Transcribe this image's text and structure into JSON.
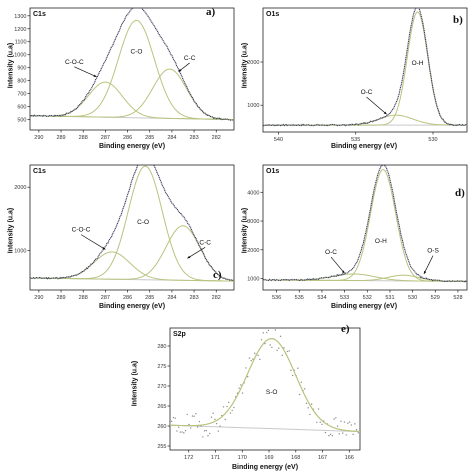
{
  "colors": {
    "envelope": "#3a3d5c",
    "component": "#b9c47f",
    "background_line": "#c9c9c9",
    "raw_points": "#8c8c8c",
    "axis": "#222222"
  },
  "chart_data": [
    {
      "id": "a",
      "type": "line",
      "panel_letter": "a)",
      "title": "C1s",
      "xlabel": "Binding energy (eV)",
      "ylabel": "Intensity (u.a)",
      "x_reversed": true,
      "xlim": [
        290.4,
        281.2
      ],
      "ylim": [
        420,
        1360
      ],
      "xticks": [
        290,
        289,
        288,
        287,
        286,
        285,
        284,
        283,
        282
      ],
      "yticks": [
        500,
        600,
        700,
        800,
        900,
        1000,
        1100,
        1200,
        1300
      ],
      "baseline": [
        [
          290.4,
          530
        ],
        [
          281.2,
          500
        ]
      ],
      "peaks": [
        {
          "label": "C-O-C",
          "center": 287.0,
          "height": 270,
          "fwhm": 1.8
        },
        {
          "label": "C-O",
          "center": 285.6,
          "height": 750,
          "fwhm": 1.9
        },
        {
          "label": "C-C",
          "center": 284.1,
          "height": 380,
          "fwhm": 1.8
        }
      ],
      "annotations": [
        {
          "text": "C-O-C",
          "x": 288.4,
          "y": 930,
          "arrow_to": [
            287.4,
            830
          ]
        },
        {
          "text": "C-O",
          "x": 285.6,
          "y": 1010
        },
        {
          "text": "C-C",
          "x": 283.2,
          "y": 960,
          "arrow_to": [
            283.7,
            870
          ]
        }
      ],
      "noise_seed": 3
    },
    {
      "id": "b",
      "type": "line",
      "panel_letter": "b)",
      "title": "O1s",
      "xlabel": "Binding energy (eV)",
      "ylabel": "Intensity (u.a)",
      "x_reversed": true,
      "xlim": [
        541,
        527.8
      ],
      "ylim": [
        380,
        3250
      ],
      "xticks": [
        540,
        535,
        530
      ],
      "yticks": [
        1000,
        2000
      ],
      "baseline": [
        [
          541,
          540
        ],
        [
          527.8,
          540
        ]
      ],
      "peaks": [
        {
          "label": "O-C",
          "center": 532.4,
          "height": 230,
          "fwhm": 2.6
        },
        {
          "label": "O-H",
          "center": 531.0,
          "height": 2620,
          "fwhm": 1.55
        }
      ],
      "annotations": [
        {
          "text": "O-C",
          "x": 534.3,
          "y": 1260,
          "arrow_to": [
            533.0,
            790
          ]
        },
        {
          "text": "O-H",
          "x": 531.0,
          "y": 1930
        }
      ],
      "noise_seed": 7
    },
    {
      "id": "c",
      "type": "line",
      "panel_letter": "c)",
      "title": "C1s",
      "xlabel": "Binding energy (eV)",
      "ylabel": "Intensity (u.a)",
      "x_reversed": true,
      "xlim": [
        290.4,
        281.2
      ],
      "ylim": [
        380,
        2350
      ],
      "xticks": [
        290,
        289,
        288,
        287,
        286,
        285,
        284,
        283,
        282
      ],
      "yticks": [
        1000,
        2000
      ],
      "baseline": [
        [
          290.4,
          570
        ],
        [
          281.2,
          520
        ]
      ],
      "peaks": [
        {
          "label": "C-O-C",
          "center": 286.7,
          "height": 430,
          "fwhm": 1.9
        },
        {
          "label": "C-O",
          "center": 285.2,
          "height": 1790,
          "fwhm": 1.8
        },
        {
          "label": "C-C",
          "center": 283.5,
          "height": 860,
          "fwhm": 1.8
        }
      ],
      "annotations": [
        {
          "text": "C-O-C",
          "x": 288.1,
          "y": 1300,
          "arrow_to": [
            287.0,
            1020
          ]
        },
        {
          "text": "C-O",
          "x": 285.3,
          "y": 1420
        },
        {
          "text": "C-C",
          "x": 282.5,
          "y": 1100,
          "arrow_to": [
            283.3,
            880
          ]
        }
      ],
      "noise_seed": 11
    },
    {
      "id": "d",
      "type": "line",
      "panel_letter": "d)",
      "title": "O1s",
      "xlabel": "Binding energy (eV)",
      "ylabel": "Intensity (u.a)",
      "x_reversed": true,
      "xlim": [
        536.6,
        527.6
      ],
      "ylim": [
        600,
        4950
      ],
      "xticks": [
        536,
        535,
        534,
        533,
        532,
        531,
        530,
        529,
        528
      ],
      "yticks": [
        1000,
        2000,
        3000,
        4000
      ],
      "baseline": [
        [
          536.6,
          950
        ],
        [
          527.6,
          900
        ]
      ],
      "peaks": [
        {
          "label": "O-C",
          "center": 532.6,
          "height": 230,
          "fwhm": 2.2
        },
        {
          "label": "O-H",
          "center": 531.3,
          "height": 3870,
          "fwhm": 1.3
        },
        {
          "label": "O-S",
          "center": 530.4,
          "height": 200,
          "fwhm": 1.6
        }
      ],
      "annotations": [
        {
          "text": "O-C",
          "x": 533.6,
          "y": 1850,
          "arrow_to": [
            533.0,
            1180
          ]
        },
        {
          "text": "O-H",
          "x": 531.4,
          "y": 2230
        },
        {
          "text": "O-S",
          "x": 529.1,
          "y": 1900,
          "arrow_to": [
            529.5,
            1160
          ]
        }
      ],
      "noise_seed": 5
    },
    {
      "id": "e",
      "type": "scatter",
      "panel_letter": "e)",
      "title": "S2p",
      "xlabel": "Binding energy (eV)",
      "ylabel": "Intensity (u.a)",
      "x_reversed": true,
      "xlim": [
        172.7,
        165.6
      ],
      "ylim": [
        254,
        284.5
      ],
      "xticks": [
        172,
        171,
        170,
        169,
        168,
        167,
        166
      ],
      "yticks": [
        255,
        260,
        265,
        270,
        275,
        280
      ],
      "baseline": [
        [
          172.7,
          260.2
        ],
        [
          165.6,
          258.6
        ]
      ],
      "peaks": [
        {
          "label": "S-O",
          "center": 168.9,
          "height": 22.5,
          "fwhm": 2.1
        }
      ],
      "annotations": [
        {
          "text": "S-O",
          "x": 168.9,
          "y": 268
        }
      ],
      "noise_amplitude": 3.0,
      "noise_seed": 19
    }
  ]
}
